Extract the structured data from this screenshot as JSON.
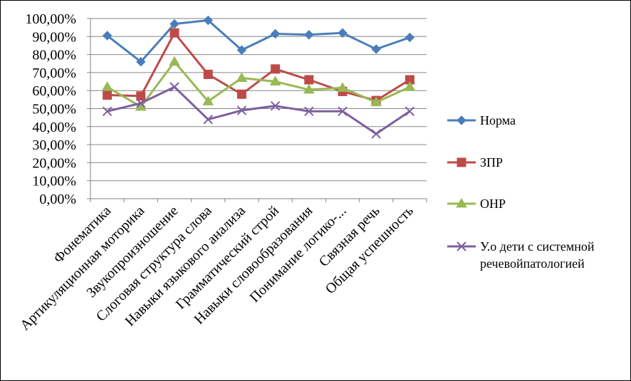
{
  "chart_data": {
    "type": "line",
    "categories": [
      "Фонематика",
      "Артикуляционная моторика",
      "Звукопроизношение",
      "Слоговая структура слова",
      "Навыки языкового анализа",
      "Грамматический строй",
      "Навыки словообразования",
      "Понимание логико-...",
      "Связная речь",
      "Общая успешность"
    ],
    "yticks": [
      "0,00%",
      "10,00%",
      "20,00%",
      "30,00%",
      "40,00%",
      "50,00%",
      "60,00%",
      "70,00%",
      "80,00%",
      "90,00%",
      "100,00%"
    ],
    "ylim": [
      0,
      100
    ],
    "grid": true,
    "legend_position": "right",
    "series": [
      {
        "name": "Норма",
        "color": "#4a7ebb",
        "marker": "diamond",
        "values": [
          90.5,
          76,
          97,
          99,
          82.5,
          91.5,
          91,
          92,
          83,
          89.5
        ]
      },
      {
        "name": "ЗПР",
        "color": "#be4b48",
        "marker": "square",
        "values": [
          57.5,
          57,
          92,
          69,
          58,
          72,
          66,
          59.5,
          54.5,
          66
        ]
      },
      {
        "name": "ОНР",
        "color": "#98b954",
        "marker": "triangle",
        "values": [
          62,
          51,
          76,
          54,
          67,
          65,
          60.5,
          61.5,
          53.5,
          62
        ]
      },
      {
        "name": "У.о дети с системной речевойпатологией",
        "color": "#7d5fa0",
        "marker": "x",
        "values": [
          48.5,
          53,
          62,
          44,
          49,
          51.5,
          48.5,
          48.5,
          36,
          48.5
        ]
      }
    ],
    "legend_lines": [
      [
        "Норма"
      ],
      [
        "ЗПР"
      ],
      [
        "ОНР"
      ],
      [
        "У.о дети с системной",
        "речевойпатологией"
      ]
    ]
  }
}
